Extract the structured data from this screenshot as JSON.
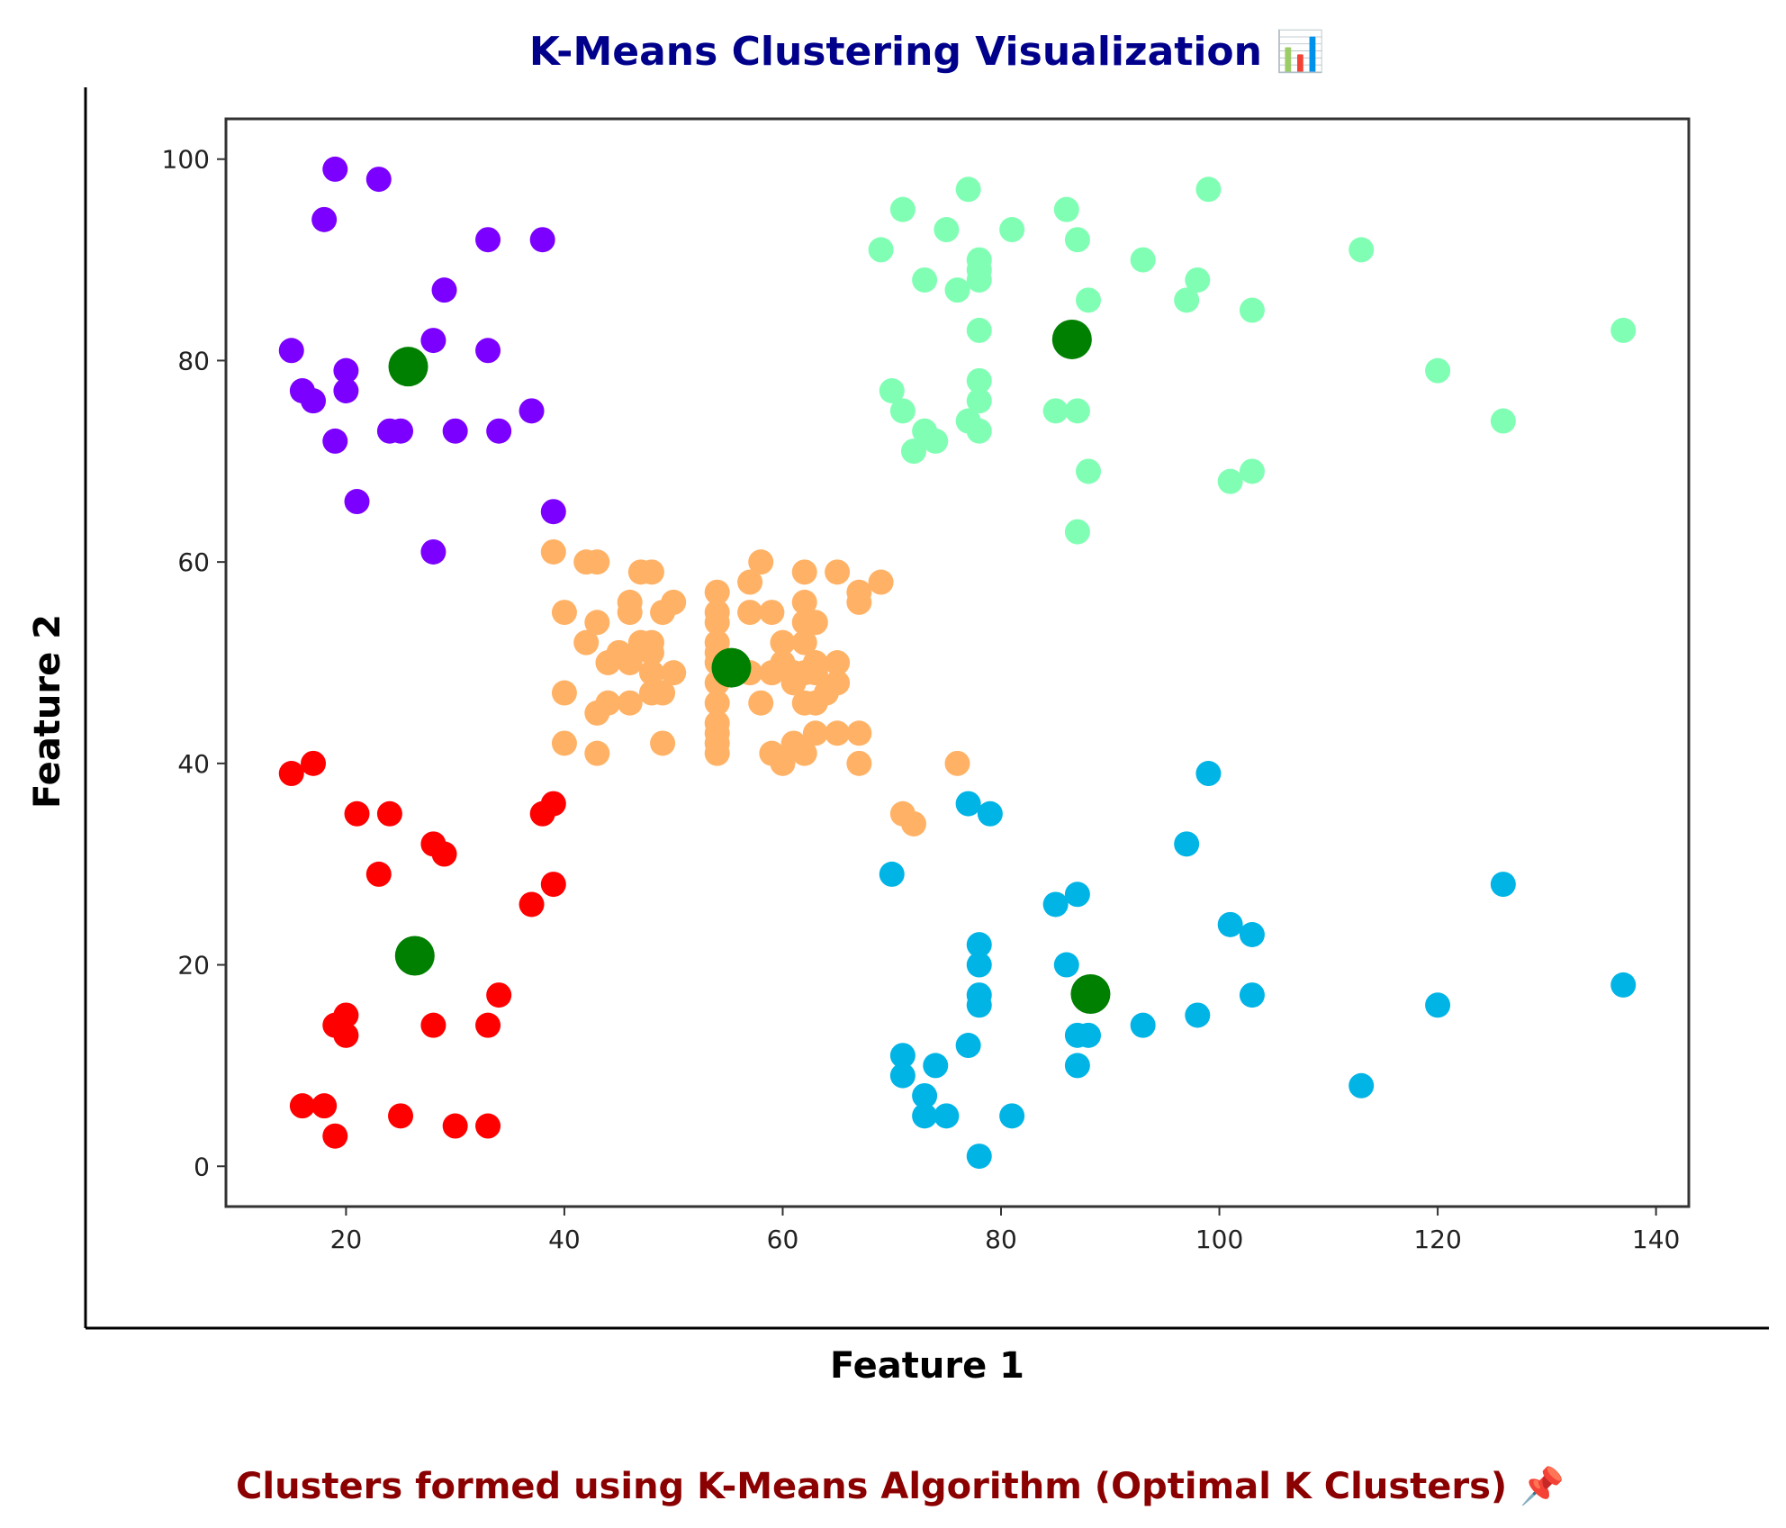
{
  "colors": {
    "title": "#00008b",
    "caption": "#8b0000",
    "centroid": "#008000",
    "clusters": [
      "#7b00ff",
      "#ff0000",
      "#ffb266",
      "#80ffb4",
      "#00b4e6"
    ]
  },
  "chart_data": {
    "type": "scatter",
    "title": "K-Means Clustering Visualization 📊",
    "subtitle": "Clusters formed using K-Means Algorithm (Optimal K Clusters) 📌",
    "xlabel": "Feature 1",
    "ylabel": "Feature 2",
    "xlim": [
      9,
      143
    ],
    "ylim": [
      -4,
      104
    ],
    "xticks": [
      20,
      40,
      60,
      80,
      100,
      120,
      140
    ],
    "yticks": [
      0,
      20,
      40,
      60,
      80,
      100
    ],
    "grid": false,
    "legend": "none",
    "series": [
      {
        "color": "#7b00ff",
        "points": [
          [
            19,
            99
          ],
          [
            23,
            98
          ],
          [
            18,
            94
          ],
          [
            33,
            92
          ],
          [
            38,
            92
          ],
          [
            29,
            87
          ],
          [
            28,
            82
          ],
          [
            15,
            81
          ],
          [
            33,
            81
          ],
          [
            20,
            79
          ],
          [
            16,
            77
          ],
          [
            20,
            77
          ],
          [
            17,
            76
          ],
          [
            37,
            75
          ],
          [
            24,
            73
          ],
          [
            25,
            73
          ],
          [
            30,
            73
          ],
          [
            34,
            73
          ],
          [
            19,
            72
          ],
          [
            21,
            66
          ],
          [
            39,
            65
          ],
          [
            28,
            61
          ]
        ]
      },
      {
        "color": "#ff0000",
        "points": [
          [
            17,
            40
          ],
          [
            15,
            39
          ],
          [
            39,
            36
          ],
          [
            38,
            35
          ],
          [
            21,
            35
          ],
          [
            24,
            35
          ],
          [
            28,
            32
          ],
          [
            29,
            31
          ],
          [
            23,
            29
          ],
          [
            39,
            28
          ],
          [
            37,
            26
          ],
          [
            34,
            17
          ],
          [
            20,
            15
          ],
          [
            19,
            14
          ],
          [
            28,
            14
          ],
          [
            33,
            14
          ],
          [
            20,
            13
          ],
          [
            16,
            6
          ],
          [
            18,
            6
          ],
          [
            25,
            5
          ],
          [
            30,
            4
          ],
          [
            33,
            4
          ],
          [
            19,
            3
          ]
        ]
      },
      {
        "color": "#ffb266",
        "points": [
          [
            39,
            61
          ],
          [
            42,
            60
          ],
          [
            43,
            60
          ],
          [
            47,
            59
          ],
          [
            48,
            59
          ],
          [
            58,
            60
          ],
          [
            57,
            58
          ],
          [
            62,
            59
          ],
          [
            65,
            59
          ],
          [
            69,
            58
          ],
          [
            67,
            57
          ],
          [
            54,
            57
          ],
          [
            62,
            56
          ],
          [
            50,
            56
          ],
          [
            46,
            56
          ],
          [
            46,
            55
          ],
          [
            40,
            55
          ],
          [
            49,
            55
          ],
          [
            54,
            55
          ],
          [
            57,
            55
          ],
          [
            59,
            55
          ],
          [
            67,
            56
          ],
          [
            43,
            54
          ],
          [
            54,
            54
          ],
          [
            62,
            54
          ],
          [
            63,
            54
          ],
          [
            42,
            52
          ],
          [
            47,
            52
          ],
          [
            48,
            52
          ],
          [
            54,
            52
          ],
          [
            60,
            52
          ],
          [
            62,
            52
          ],
          [
            45,
            51
          ],
          [
            48,
            51
          ],
          [
            54,
            51
          ],
          [
            46,
            50
          ],
          [
            44,
            50
          ],
          [
            63,
            50
          ],
          [
            65,
            50
          ],
          [
            54,
            50
          ],
          [
            60,
            50
          ],
          [
            61,
            49
          ],
          [
            50,
            49
          ],
          [
            48,
            49
          ],
          [
            57,
            49
          ],
          [
            59,
            49
          ],
          [
            62,
            49
          ],
          [
            63,
            49
          ],
          [
            65,
            48
          ],
          [
            54,
            48
          ],
          [
            61,
            48
          ],
          [
            48,
            47
          ],
          [
            40,
            47
          ],
          [
            58,
            46
          ],
          [
            62,
            46
          ],
          [
            44,
            46
          ],
          [
            46,
            46
          ],
          [
            49,
            47
          ],
          [
            54,
            46
          ],
          [
            63,
            46
          ],
          [
            64,
            47
          ],
          [
            43,
            45
          ],
          [
            54,
            44
          ],
          [
            54,
            43
          ],
          [
            63,
            43
          ],
          [
            65,
            43
          ],
          [
            67,
            43
          ],
          [
            54,
            42
          ],
          [
            59,
            41
          ],
          [
            61,
            42
          ],
          [
            62,
            41
          ],
          [
            40,
            42
          ],
          [
            49,
            42
          ],
          [
            54,
            41
          ],
          [
            43,
            41
          ],
          [
            60,
            40
          ],
          [
            67,
            40
          ],
          [
            76,
            40
          ],
          [
            71,
            35
          ],
          [
            72,
            34
          ]
        ]
      },
      {
        "color": "#80ffb4",
        "points": [
          [
            77,
            97
          ],
          [
            99,
            97
          ],
          [
            71,
            95
          ],
          [
            86,
            95
          ],
          [
            75,
            93
          ],
          [
            81,
            93
          ],
          [
            87,
            92
          ],
          [
            69,
            91
          ],
          [
            113,
            91
          ],
          [
            78,
            90
          ],
          [
            93,
            90
          ],
          [
            78,
            89
          ],
          [
            73,
            88
          ],
          [
            78,
            88
          ],
          [
            98,
            88
          ],
          [
            76,
            87
          ],
          [
            88,
            86
          ],
          [
            97,
            86
          ],
          [
            103,
            85
          ],
          [
            78,
            83
          ],
          [
            137,
            83
          ],
          [
            120,
            79
          ],
          [
            78,
            78
          ],
          [
            70,
            77
          ],
          [
            78,
            76
          ],
          [
            71,
            75
          ],
          [
            85,
            75
          ],
          [
            87,
            75
          ],
          [
            77,
            74
          ],
          [
            126,
            74
          ],
          [
            73,
            73
          ],
          [
            78,
            73
          ],
          [
            74,
            72
          ],
          [
            72,
            71
          ],
          [
            88,
            69
          ],
          [
            103,
            69
          ],
          [
            101,
            68
          ],
          [
            87,
            63
          ]
        ]
      },
      {
        "color": "#00b4e6",
        "points": [
          [
            99,
            39
          ],
          [
            77,
            36
          ],
          [
            79,
            35
          ],
          [
            97,
            32
          ],
          [
            70,
            29
          ],
          [
            126,
            28
          ],
          [
            87,
            27
          ],
          [
            85,
            26
          ],
          [
            101,
            24
          ],
          [
            103,
            23
          ],
          [
            78,
            22
          ],
          [
            78,
            20
          ],
          [
            86,
            20
          ],
          [
            137,
            18
          ],
          [
            78,
            17
          ],
          [
            103,
            17
          ],
          [
            78,
            16
          ],
          [
            120,
            16
          ],
          [
            98,
            15
          ],
          [
            93,
            14
          ],
          [
            87,
            13
          ],
          [
            88,
            13
          ],
          [
            77,
            12
          ],
          [
            71,
            11
          ],
          [
            74,
            10
          ],
          [
            87,
            10
          ],
          [
            71,
            9
          ],
          [
            113,
            8
          ],
          [
            73,
            7
          ],
          [
            73,
            5
          ],
          [
            75,
            5
          ],
          [
            81,
            5
          ],
          [
            78,
            1
          ]
        ]
      }
    ],
    "centroids": [
      [
        25.7,
        79.4
      ],
      [
        26.3,
        20.9
      ],
      [
        55.3,
        49.5
      ],
      [
        86.5,
        82.1
      ],
      [
        88.2,
        17.1
      ]
    ]
  }
}
